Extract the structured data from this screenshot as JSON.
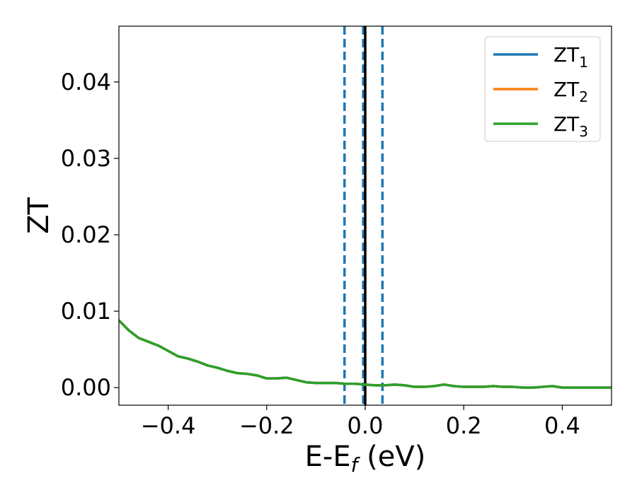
{
  "chart_data": {
    "type": "line",
    "xlabel": "E-E",
    "xlabel_sub": "f",
    "xlabel_unit": " (eV)",
    "ylabel": "ZT",
    "xlim": [
      -0.5,
      0.5
    ],
    "ylim": [
      -0.0023,
      0.0473
    ],
    "xticks": [
      -0.4,
      -0.2,
      0.0,
      0.2,
      0.4
    ],
    "xtick_labels": [
      "−0.4",
      "−0.2",
      "0.0",
      "0.2",
      "0.4"
    ],
    "yticks": [
      0.0,
      0.01,
      0.02,
      0.03,
      0.04
    ],
    "ytick_labels": [
      "0.00",
      "0.01",
      "0.02",
      "0.03",
      "0.04"
    ],
    "grid": false,
    "legend_position": "top-right",
    "x": [
      -0.5,
      -0.48,
      -0.46,
      -0.44,
      -0.42,
      -0.4,
      -0.38,
      -0.36,
      -0.34,
      -0.32,
      -0.3,
      -0.28,
      -0.26,
      -0.24,
      -0.22,
      -0.2,
      -0.18,
      -0.16,
      -0.14,
      -0.12,
      -0.1,
      -0.08,
      -0.06,
      -0.04,
      -0.02,
      0.0,
      0.02,
      0.04,
      0.06,
      0.08,
      0.1,
      0.12,
      0.14,
      0.16,
      0.18,
      0.2,
      0.22,
      0.24,
      0.26,
      0.28,
      0.3,
      0.32,
      0.34,
      0.36,
      0.38,
      0.4,
      0.42,
      0.44,
      0.46,
      0.48,
      0.5
    ],
    "series": [
      {
        "name": "ZT",
        "name_sub": "1",
        "color": "#1f77b4",
        "values": [
          0.0088,
          0.0075,
          0.0065,
          0.006,
          0.0055,
          0.0048,
          0.0041,
          0.0038,
          0.0034,
          0.0029,
          0.0026,
          0.0022,
          0.0019,
          0.0018,
          0.0016,
          0.0012,
          0.0012,
          0.0013,
          0.001,
          0.0007,
          0.0006,
          0.0006,
          0.0006,
          0.0005,
          0.0005,
          0.0004,
          0.0003,
          0.0003,
          0.0004,
          0.0003,
          0.0001,
          0.0001,
          0.0002,
          0.0004,
          0.0002,
          0.0001,
          0.0001,
          0.0001,
          0.0002,
          0.0001,
          0.0001,
          0.0,
          0.0,
          0.0001,
          0.0002,
          0.0,
          0.0,
          0.0,
          0.0,
          0.0,
          0.0
        ]
      },
      {
        "name": "ZT",
        "name_sub": "2",
        "color": "#ff7f0e",
        "values": [
          0.0088,
          0.0075,
          0.0065,
          0.006,
          0.0055,
          0.0048,
          0.0041,
          0.0038,
          0.0034,
          0.0029,
          0.0026,
          0.0022,
          0.0019,
          0.0018,
          0.0016,
          0.0012,
          0.0012,
          0.0013,
          0.001,
          0.0007,
          0.0006,
          0.0006,
          0.0006,
          0.0005,
          0.0005,
          0.0004,
          0.0003,
          0.0003,
          0.0004,
          0.0003,
          0.0001,
          0.0001,
          0.0002,
          0.0004,
          0.0002,
          0.0001,
          0.0001,
          0.0001,
          0.0002,
          0.0001,
          0.0001,
          0.0,
          0.0,
          0.0001,
          0.0002,
          0.0,
          0.0,
          0.0,
          0.0,
          0.0,
          0.0
        ]
      },
      {
        "name": "ZT",
        "name_sub": "3",
        "color": "#2ca02c",
        "values": [
          0.0088,
          0.0075,
          0.0065,
          0.006,
          0.0055,
          0.0048,
          0.0041,
          0.0038,
          0.0034,
          0.0029,
          0.0026,
          0.0022,
          0.0019,
          0.0018,
          0.0016,
          0.0012,
          0.0012,
          0.0013,
          0.001,
          0.0007,
          0.0006,
          0.0006,
          0.0006,
          0.0005,
          0.0005,
          0.0004,
          0.0003,
          0.0003,
          0.0004,
          0.0003,
          0.0001,
          0.0001,
          0.0002,
          0.0004,
          0.0002,
          0.0001,
          0.0001,
          0.0001,
          0.0002,
          0.0001,
          0.0001,
          0.0,
          0.0,
          0.0001,
          0.0002,
          0.0,
          0.0,
          0.0,
          0.0,
          0.0,
          0.0
        ]
      }
    ],
    "vlines": [
      {
        "x": -0.042,
        "style": "dashed",
        "color": "#1f77b4"
      },
      {
        "x": -0.004,
        "style": "dashed",
        "color": "#1f77b4"
      },
      {
        "x": 0.035,
        "style": "dashed",
        "color": "#1f77b4"
      },
      {
        "x": 0.0,
        "style": "solid",
        "color": "#000000"
      }
    ]
  }
}
